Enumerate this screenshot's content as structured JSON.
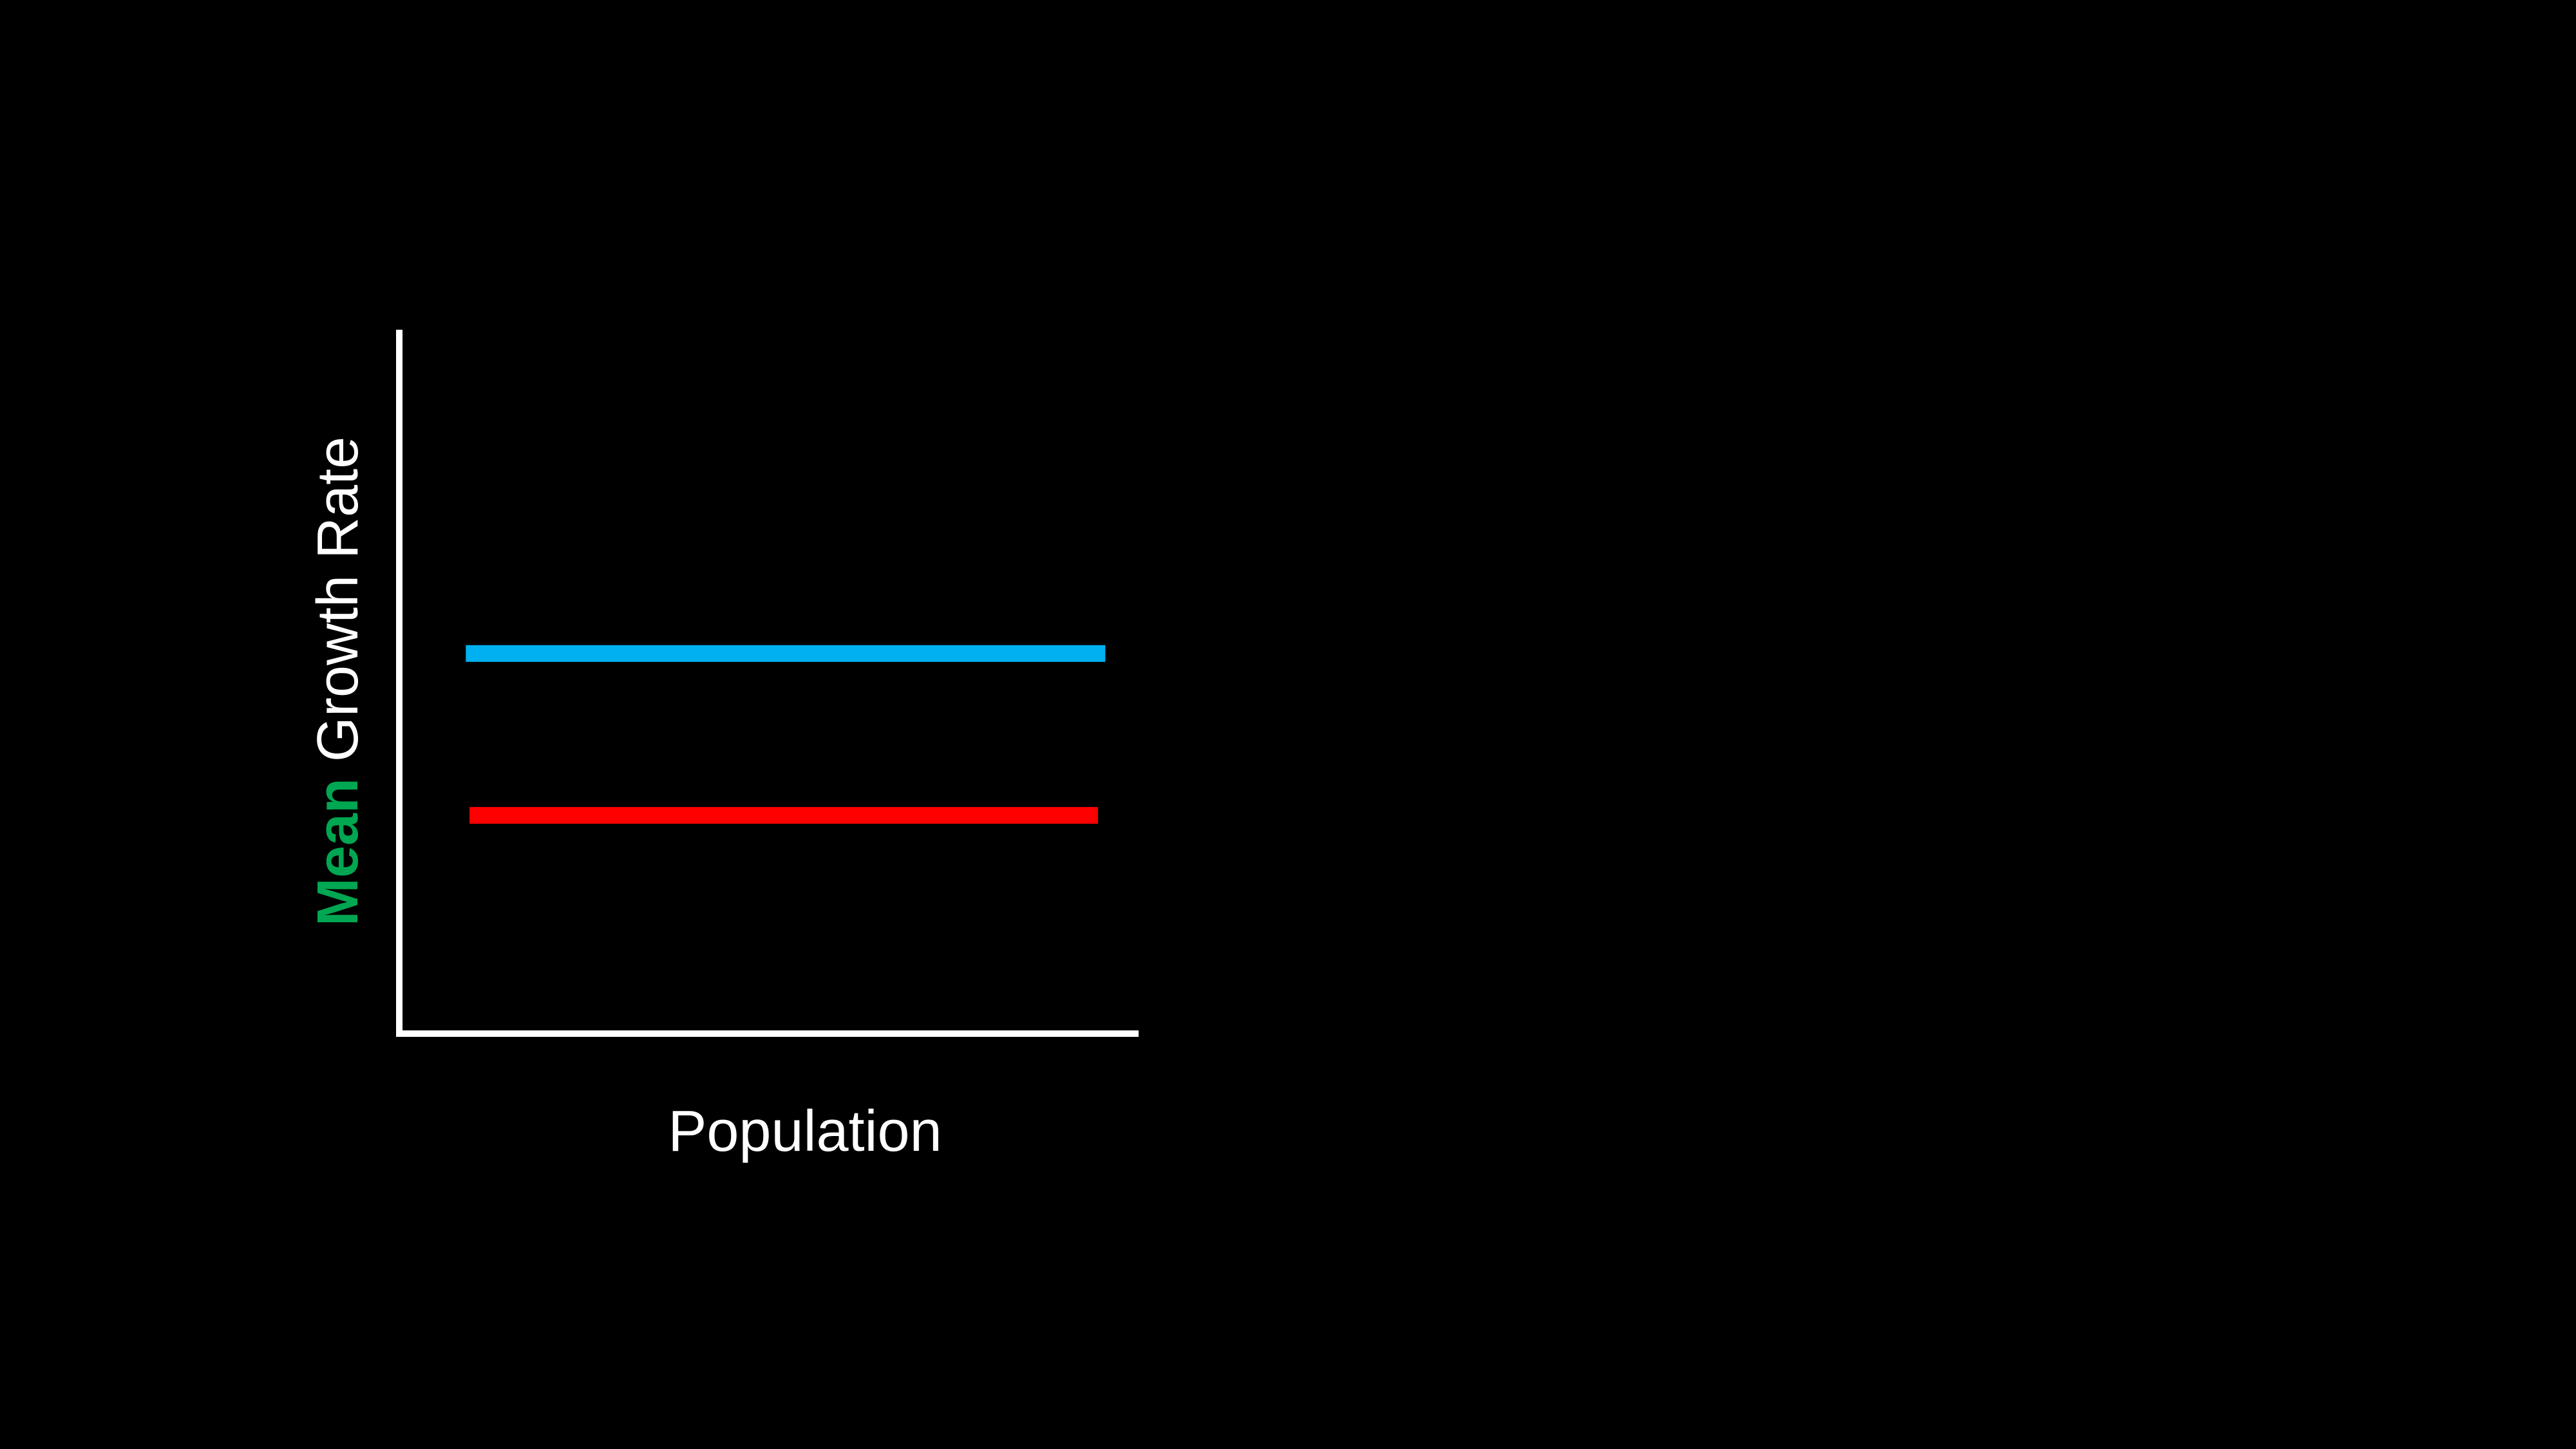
{
  "background_color": "#000000",
  "axis_color": "#ffffff",
  "chart_data": {
    "type": "line",
    "title": "",
    "xlabel": "Population",
    "ylabel": {
      "highlight": "Mean",
      "rest": "Growth Rate",
      "highlight_color": "#00a651",
      "rest_color": "#ffffff"
    },
    "xlim": [
      0,
      1
    ],
    "ylim": [
      0,
      1
    ],
    "grid": false,
    "series": [
      {
        "color": "#00b0f0",
        "x": [
          0.09,
          0.955
        ],
        "y": [
          0.54,
          0.54
        ]
      },
      {
        "color": "#ff0000",
        "x": [
          0.095,
          0.945
        ],
        "y": [
          0.31,
          0.31
        ]
      }
    ]
  }
}
